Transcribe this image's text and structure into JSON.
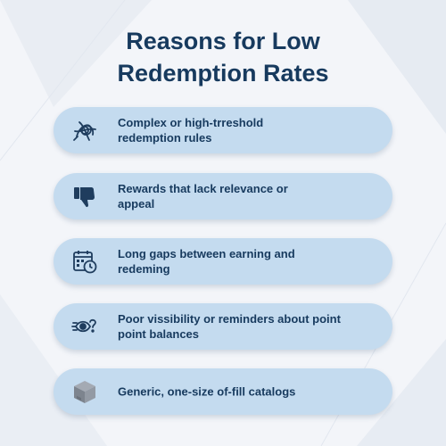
{
  "title": {
    "line1": "Reasons for Low",
    "line2": "Redemption Rates"
  },
  "colors": {
    "title": "#173a5e",
    "card": "#c4dbef",
    "background": "#f3f5f9",
    "text": "#173a5e"
  },
  "reasons": [
    {
      "icon": "tangled-knot-icon",
      "lines": [
        "Complex or high-trreshold",
        "redemption rules"
      ]
    },
    {
      "icon": "thumbs-down-icon",
      "lines": [
        "Rewards that lack relevance or",
        "appeal"
      ]
    },
    {
      "icon": "calendar-clock-icon",
      "lines": [
        "Long gaps between earning and",
        "redeming"
      ]
    },
    {
      "icon": "eye-question-icon",
      "lines": [
        "Poor vissibility or reminders about point",
        "point balances"
      ]
    },
    {
      "icon": "box-icon",
      "lines": [
        "Generic, one-size of-fill catalogs"
      ]
    }
  ]
}
